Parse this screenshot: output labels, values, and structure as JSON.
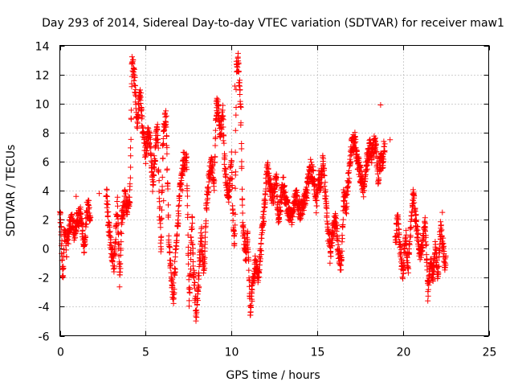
{
  "chart_data": {
    "type": "scatter",
    "title": "Day 293 of 2014, Sidereal Day-to-day VTEC variation (SDTVAR) for receiver maw1",
    "xlabel": "GPS time / hours",
    "ylabel": "SDTVAR / TECUs",
    "xlim": [
      0,
      25
    ],
    "ylim": [
      -6,
      14
    ],
    "x_ticks": [
      0,
      5,
      10,
      15,
      20,
      25
    ],
    "y_ticks": [
      -6,
      -4,
      -2,
      0,
      2,
      4,
      6,
      8,
      10,
      12,
      14
    ],
    "grid": true,
    "marker": "plus",
    "color": "#ff0000",
    "series": [
      {
        "name": "maw1",
        "trace": [
          [
            0.0,
            3.0
          ],
          [
            0.1,
            0.5
          ],
          [
            0.18,
            -2.0
          ],
          [
            0.28,
            1.5
          ],
          [
            0.38,
            0.0
          ],
          [
            0.55,
            1.5
          ],
          [
            0.7,
            1.8
          ],
          [
            0.85,
            1.2
          ],
          [
            1.0,
            2.0
          ],
          [
            1.1,
            2.0
          ],
          [
            1.2,
            2.5
          ],
          [
            1.35,
            1.0
          ],
          [
            1.45,
            0.0
          ],
          [
            1.55,
            2.5
          ],
          [
            1.7,
            3.0
          ],
          [
            1.8,
            1.5
          ],
          [
            2.7,
            4.0
          ],
          [
            2.85,
            1.5
          ],
          [
            3.0,
            0.0
          ],
          [
            3.15,
            -1.0
          ],
          [
            3.35,
            3.0
          ],
          [
            3.5,
            -2.0
          ],
          [
            3.6,
            2.0
          ],
          [
            3.8,
            3.5
          ],
          [
            3.95,
            2.5
          ],
          [
            4.1,
            4.0
          ],
          [
            4.2,
            13.0
          ],
          [
            4.3,
            12.5
          ],
          [
            4.4,
            11.0
          ],
          [
            4.5,
            8.5
          ],
          [
            4.6,
            10.0
          ],
          [
            4.7,
            10.5
          ],
          [
            4.8,
            8.5
          ],
          [
            5.0,
            6.5
          ],
          [
            5.15,
            8.0
          ],
          [
            5.3,
            7.0
          ],
          [
            5.4,
            4.5
          ],
          [
            5.5,
            5.5
          ],
          [
            5.6,
            7.5
          ],
          [
            5.7,
            8.0
          ],
          [
            5.8,
            3.0
          ],
          [
            5.9,
            0.0
          ],
          [
            6.0,
            6.5
          ],
          [
            6.1,
            8.5
          ],
          [
            6.2,
            9.0
          ],
          [
            6.35,
            1.0
          ],
          [
            6.5,
            -2.0
          ],
          [
            6.6,
            -3.5
          ],
          [
            7.0,
            4.0
          ],
          [
            7.2,
            6.0
          ],
          [
            7.4,
            6.0
          ],
          [
            7.55,
            -3.5
          ],
          [
            7.7,
            2.0
          ],
          [
            7.8,
            -1.5
          ],
          [
            7.95,
            -4.5
          ],
          [
            8.1,
            -2.0
          ],
          [
            8.25,
            1.0
          ],
          [
            8.4,
            -1.5
          ],
          [
            8.55,
            3.0
          ],
          [
            8.7,
            5.0
          ],
          [
            8.85,
            6.0
          ],
          [
            9.0,
            4.5
          ],
          [
            9.1,
            9.5
          ],
          [
            9.2,
            10.0
          ],
          [
            9.35,
            8.0
          ],
          [
            9.5,
            9.5
          ],
          [
            9.6,
            6.0
          ],
          [
            9.7,
            4.5
          ],
          [
            9.85,
            3.5
          ],
          [
            10.0,
            6.5
          ],
          [
            10.1,
            2.0
          ],
          [
            10.2,
            0.5
          ],
          [
            10.3,
            12.8
          ],
          [
            10.4,
            12.8
          ],
          [
            10.55,
            9.5
          ],
          [
            10.65,
            2.0
          ],
          [
            10.75,
            0.5
          ],
          [
            10.85,
            -0.5
          ],
          [
            10.95,
            1.0
          ],
          [
            11.1,
            -4.5
          ],
          [
            11.25,
            -2.5
          ],
          [
            11.4,
            -1.0
          ],
          [
            11.6,
            -2.0
          ],
          [
            11.75,
            0.5
          ],
          [
            11.9,
            2.5
          ],
          [
            12.0,
            4.0
          ],
          [
            12.1,
            5.5
          ],
          [
            12.3,
            4.0
          ],
          [
            12.45,
            3.5
          ],
          [
            12.6,
            5.0
          ],
          [
            12.75,
            2.0
          ],
          [
            12.9,
            3.5
          ],
          [
            13.0,
            4.5
          ],
          [
            13.2,
            3.0
          ],
          [
            13.35,
            2.5
          ],
          [
            13.5,
            2.0
          ],
          [
            13.65,
            3.0
          ],
          [
            13.8,
            3.5
          ],
          [
            14.0,
            2.5
          ],
          [
            14.2,
            3.0
          ],
          [
            14.4,
            4.0
          ],
          [
            14.6,
            5.5
          ],
          [
            14.8,
            5.0
          ],
          [
            14.95,
            3.0
          ],
          [
            15.1,
            5.0
          ],
          [
            15.2,
            4.5
          ],
          [
            15.35,
            6.0
          ],
          [
            15.5,
            3.5
          ],
          [
            15.65,
            1.0
          ],
          [
            15.8,
            0.0
          ],
          [
            15.95,
            1.5
          ],
          [
            16.1,
            2.0
          ],
          [
            16.25,
            -0.5
          ],
          [
            16.4,
            -1.0
          ],
          [
            16.55,
            3.5
          ],
          [
            16.7,
            3.0
          ],
          [
            16.85,
            5.0
          ],
          [
            17.0,
            7.0
          ],
          [
            17.2,
            7.5
          ],
          [
            17.35,
            6.0
          ],
          [
            17.55,
            5.0
          ],
          [
            17.7,
            4.0
          ],
          [
            17.9,
            6.0
          ],
          [
            18.05,
            7.0
          ],
          [
            18.2,
            6.5
          ],
          [
            18.4,
            7.5
          ],
          [
            18.55,
            5.0
          ],
          [
            18.7,
            6.0
          ],
          [
            18.85,
            6.0
          ],
          [
            18.95,
            7.5
          ],
          [
            19.55,
            0.5
          ],
          [
            19.7,
            2.0
          ],
          [
            19.85,
            0.0
          ],
          [
            20.0,
            -2.0
          ],
          [
            20.15,
            1.0
          ],
          [
            20.3,
            -1.5
          ],
          [
            20.45,
            1.5
          ],
          [
            20.6,
            4.0
          ],
          [
            20.75,
            2.0
          ],
          [
            21.0,
            -0.5
          ],
          [
            21.15,
            0.0
          ],
          [
            21.3,
            2.0
          ],
          [
            21.45,
            -3.0
          ],
          [
            21.6,
            -1.0
          ],
          [
            21.75,
            -2.0
          ],
          [
            21.9,
            0.0
          ],
          [
            22.05,
            -2.0
          ],
          [
            22.2,
            1.5
          ],
          [
            22.35,
            0.0
          ],
          [
            22.45,
            -1.0
          ],
          [
            22.5,
            -0.5
          ]
        ],
        "outliers": [
          [
            18.7,
            9.9
          ],
          [
            10.2,
            11.2
          ],
          [
            7.15,
            4.0
          ],
          [
            6.05,
            3.3
          ],
          [
            19.25,
            7.5
          ],
          [
            0.95,
            3.6
          ],
          [
            2.3,
            3.8
          ],
          [
            7.8,
            -1.9
          ],
          [
            15.75,
            -1.0
          ],
          [
            22.3,
            2.5
          ]
        ]
      }
    ]
  }
}
